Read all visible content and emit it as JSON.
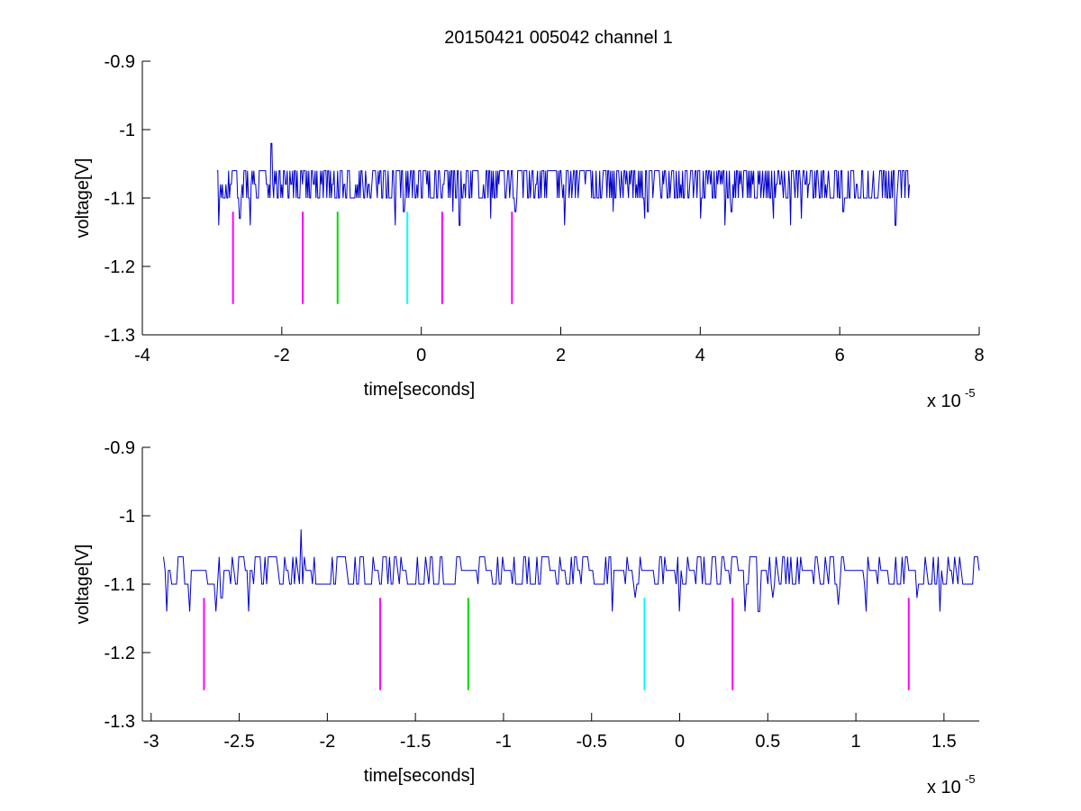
{
  "figure": {
    "title": "20150421 005042 channel 1",
    "background": "#ffffff"
  },
  "chart_data": [
    {
      "type": "line",
      "title": "20150421 005042 channel 1",
      "xlabel": "time[seconds]",
      "ylabel": "voltage[V]",
      "x_multiplier": "x 10",
      "x_multiplier_exp": "-5",
      "xlim": [
        -4,
        8
      ],
      "ylim": [
        -1.3,
        -0.9
      ],
      "ydir": "reverse",
      "xticks": [
        -4,
        -2,
        0,
        2,
        4,
        6,
        8
      ],
      "xtick_labels": [
        "-4",
        "-2",
        "0",
        "2",
        "4",
        "6",
        "8"
      ],
      "yticks": [
        -0.9,
        -1,
        -1.1,
        -1.2,
        -1.3
      ],
      "ytick_labels": [
        "-0.9",
        "-1",
        "-1.1",
        "-1.2",
        "-1.3"
      ],
      "grid": false,
      "series": [
        {
          "color": "#0000cc",
          "x_range": [
            -2.93,
            7.0
          ],
          "levels": [
            -1.06,
            -1.08,
            -1.1
          ],
          "baseline": -1.1,
          "dips": [
            {
              "x": -2.9,
              "y": -1.14
            },
            {
              "x": -2.6,
              "y": -1.13
            },
            {
              "x": -2.45,
              "y": -1.14
            },
            {
              "x": -0.37,
              "y": -1.14
            },
            {
              "x": -0.25,
              "y": -1.12
            },
            {
              "x": 0.45,
              "y": -1.12
            },
            {
              "x": 0.55,
              "y": -1.14
            },
            {
              "x": 1.0,
              "y": -1.13
            },
            {
              "x": 1.35,
              "y": -1.12
            },
            {
              "x": 2.05,
              "y": -1.14
            },
            {
              "x": 2.75,
              "y": -1.12
            },
            {
              "x": 3.2,
              "y": -1.13
            },
            {
              "x": 3.25,
              "y": -1.12
            },
            {
              "x": 4.0,
              "y": -1.13
            },
            {
              "x": 4.35,
              "y": -1.14
            },
            {
              "x": 4.45,
              "y": -1.12
            },
            {
              "x": 5.05,
              "y": -1.13
            },
            {
              "x": 5.3,
              "y": -1.14
            },
            {
              "x": 5.45,
              "y": -1.13
            },
            {
              "x": 6.8,
              "y": -1.14
            },
            {
              "x": 6.05,
              "y": -1.12
            }
          ],
          "peaks": [
            {
              "x": -2.15,
              "y": -1.02
            }
          ]
        }
      ],
      "markers": [
        {
          "x": -2.7,
          "y_top": -1.12,
          "y_bottom": -1.255,
          "color": "#ff00ff"
        },
        {
          "x": -1.7,
          "y_top": -1.12,
          "y_bottom": -1.255,
          "color": "#ff00ff"
        },
        {
          "x": -1.2,
          "y_top": -1.12,
          "y_bottom": -1.255,
          "color": "#00dd00"
        },
        {
          "x": -0.2,
          "y_top": -1.12,
          "y_bottom": -1.255,
          "color": "#00ffff"
        },
        {
          "x": 0.3,
          "y_top": -1.12,
          "y_bottom": -1.255,
          "color": "#ff00ff"
        },
        {
          "x": 1.3,
          "y_top": -1.12,
          "y_bottom": -1.255,
          "color": "#ff00ff"
        }
      ]
    },
    {
      "type": "line",
      "title": "",
      "xlabel": "time[seconds]",
      "ylabel": "voltage[V]",
      "x_multiplier": "x 10",
      "x_multiplier_exp": "-5",
      "xlim": [
        -3.05,
        1.7
      ],
      "ylim": [
        -1.3,
        -0.9
      ],
      "ydir": "reverse",
      "xticks": [
        -3,
        -2.5,
        -2,
        -1.5,
        -1,
        -0.5,
        0,
        0.5,
        1,
        1.5
      ],
      "xtick_labels": [
        "-3",
        "-2.5",
        "-2",
        "-1.5",
        "-1",
        "-0.5",
        "0",
        "0.5",
        "1",
        "1.5"
      ],
      "yticks": [
        -0.9,
        -1,
        -1.1,
        -1.2,
        -1.3
      ],
      "ytick_labels": [
        "-0.9",
        "-1",
        "-1.1",
        "-1.2",
        "-1.3"
      ],
      "grid": false,
      "series": [
        {
          "color": "#0000cc",
          "x_range": [
            -2.93,
            1.7
          ],
          "levels": [
            -1.06,
            -1.08,
            -1.1
          ],
          "baseline": -1.1,
          "dips": [
            {
              "x": -2.91,
              "y": -1.14
            },
            {
              "x": -2.78,
              "y": -1.14
            },
            {
              "x": -2.63,
              "y": -1.14
            },
            {
              "x": -2.6,
              "y": -1.12
            },
            {
              "x": -2.45,
              "y": -1.14
            },
            {
              "x": -0.38,
              "y": -1.14
            },
            {
              "x": -0.25,
              "y": -1.12
            },
            {
              "x": 0.0,
              "y": -1.14
            },
            {
              "x": 0.37,
              "y": -1.14
            },
            {
              "x": 0.45,
              "y": -1.14
            },
            {
              "x": 0.53,
              "y": -1.12
            },
            {
              "x": 0.9,
              "y": -1.13
            },
            {
              "x": 1.06,
              "y": -1.14
            },
            {
              "x": 1.35,
              "y": -1.12
            },
            {
              "x": 1.48,
              "y": -1.14
            }
          ],
          "peaks": [
            {
              "x": -2.15,
              "y": -1.02
            }
          ]
        }
      ],
      "markers": [
        {
          "x": -2.7,
          "y_top": -1.12,
          "y_bottom": -1.255,
          "color": "#ff00ff"
        },
        {
          "x": -1.7,
          "y_top": -1.12,
          "y_bottom": -1.255,
          "color": "#ff00ff"
        },
        {
          "x": -1.2,
          "y_top": -1.12,
          "y_bottom": -1.255,
          "color": "#00dd00"
        },
        {
          "x": -0.2,
          "y_top": -1.12,
          "y_bottom": -1.255,
          "color": "#00ffff"
        },
        {
          "x": 0.3,
          "y_top": -1.12,
          "y_bottom": -1.255,
          "color": "#ff00ff"
        },
        {
          "x": 1.3,
          "y_top": -1.12,
          "y_bottom": -1.255,
          "color": "#ff00ff"
        }
      ]
    }
  ]
}
